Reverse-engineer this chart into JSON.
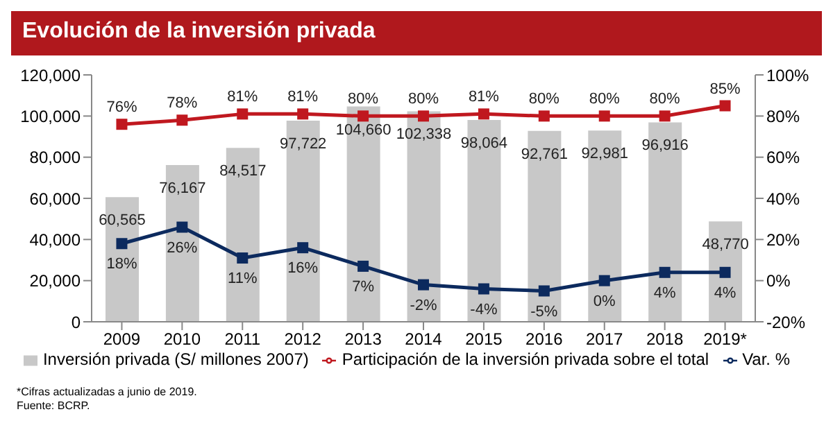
{
  "chart_data": {
    "type": "bar",
    "title": "Evolución de la inversión privada",
    "categories": [
      "2009",
      "2010",
      "2011",
      "2012",
      "2013",
      "2014",
      "2015",
      "2016",
      "2017",
      "2018",
      "2019*"
    ],
    "series": [
      {
        "name": "Inversión privada (S/ millones 2007)",
        "color": "#c8c8c8",
        "values": [
          60565,
          76167,
          84517,
          97722,
          104660,
          102338,
          98064,
          92761,
          92981,
          96916,
          48770
        ],
        "value_labels": [
          "60,565",
          "76,167",
          "84,517",
          "97,722",
          "104,660",
          "102,338",
          "98,064",
          "92,761",
          "92,981",
          "96,916",
          "48,770"
        ]
      },
      {
        "name": "Participación de la inversión privada sobre el total",
        "type": "line",
        "axis": "y2",
        "color": "#c0181f",
        "values": [
          76,
          78,
          81,
          81,
          80,
          80,
          81,
          80,
          80,
          80,
          85
        ],
        "value_labels": [
          "76%",
          "78%",
          "81%",
          "81%",
          "80%",
          "80%",
          "81%",
          "80%",
          "80%",
          "80%",
          "85%"
        ]
      },
      {
        "name": "Var. %",
        "type": "line",
        "axis": "y2",
        "color": "#0c2a5e",
        "values": [
          18,
          26,
          11,
          16,
          7,
          -2,
          -4,
          -5,
          0,
          4,
          4
        ],
        "value_labels": [
          "18%",
          "26%",
          "11%",
          "16%",
          "7%",
          "-2%",
          "-4%",
          "-5%",
          "0%",
          "4%",
          "4%"
        ]
      }
    ],
    "ylim": [
      0,
      120000
    ],
    "yticks": [
      {
        "value": 0,
        "label": "0"
      },
      {
        "value": 20000,
        "label": "20,000"
      },
      {
        "value": 40000,
        "label": "40,000"
      },
      {
        "value": 60000,
        "label": "60,000"
      },
      {
        "value": 80000,
        "label": "80,000"
      },
      {
        "value": 100000,
        "label": "100,000"
      },
      {
        "value": 120000,
        "label": "120,000"
      }
    ],
    "y2lim": [
      -20,
      100
    ],
    "y2ticks": [
      {
        "value": -20,
        "label": "-20%"
      },
      {
        "value": 0,
        "label": "0%"
      },
      {
        "value": 20,
        "label": "20%"
      },
      {
        "value": 40,
        "label": "40%"
      },
      {
        "value": 60,
        "label": "60%"
      },
      {
        "value": 80,
        "label": "80%"
      },
      {
        "value": 100,
        "label": "100%"
      }
    ],
    "marker": "square",
    "legend": "bottom",
    "grid": false,
    "annotations": [
      "*Cifras actualizadas a junio de 2019.",
      "Fuente: BCRP."
    ]
  }
}
